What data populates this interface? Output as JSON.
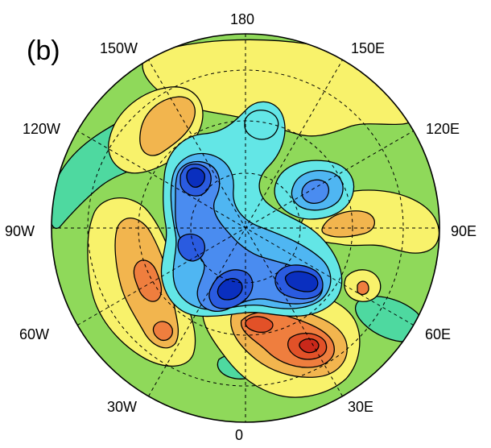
{
  "panel_label": "(b)",
  "longitude_labels": {
    "lon_0": "0",
    "lon_180": "180",
    "lon_90w": "90W",
    "lon_90e": "90E",
    "lon_60w": "60W",
    "lon_30w": "30W",
    "lon_30e": "30E",
    "lon_60e": "60E",
    "lon_120w": "120W",
    "lon_150w": "150W",
    "lon_150e": "150E",
    "lon_120e": "120E"
  },
  "projection": "polar stereographic",
  "fill_palette": {
    "level_minus_5": "#0a2fbf",
    "level_minus_4": "#2a5be0",
    "level_minus_3": "#4a8cf0",
    "level_minus_2": "#4fb6f2",
    "level_minus_1": "#63e6e6",
    "level_0": "#4ed9a0",
    "background": "#8fd95a",
    "level_plus_1": "#f8f26b",
    "level_plus_2": "#f2b54e",
    "level_plus_3": "#ef7e3e",
    "level_plus_4": "#e25128",
    "level_plus_5": "#c9281a"
  }
}
